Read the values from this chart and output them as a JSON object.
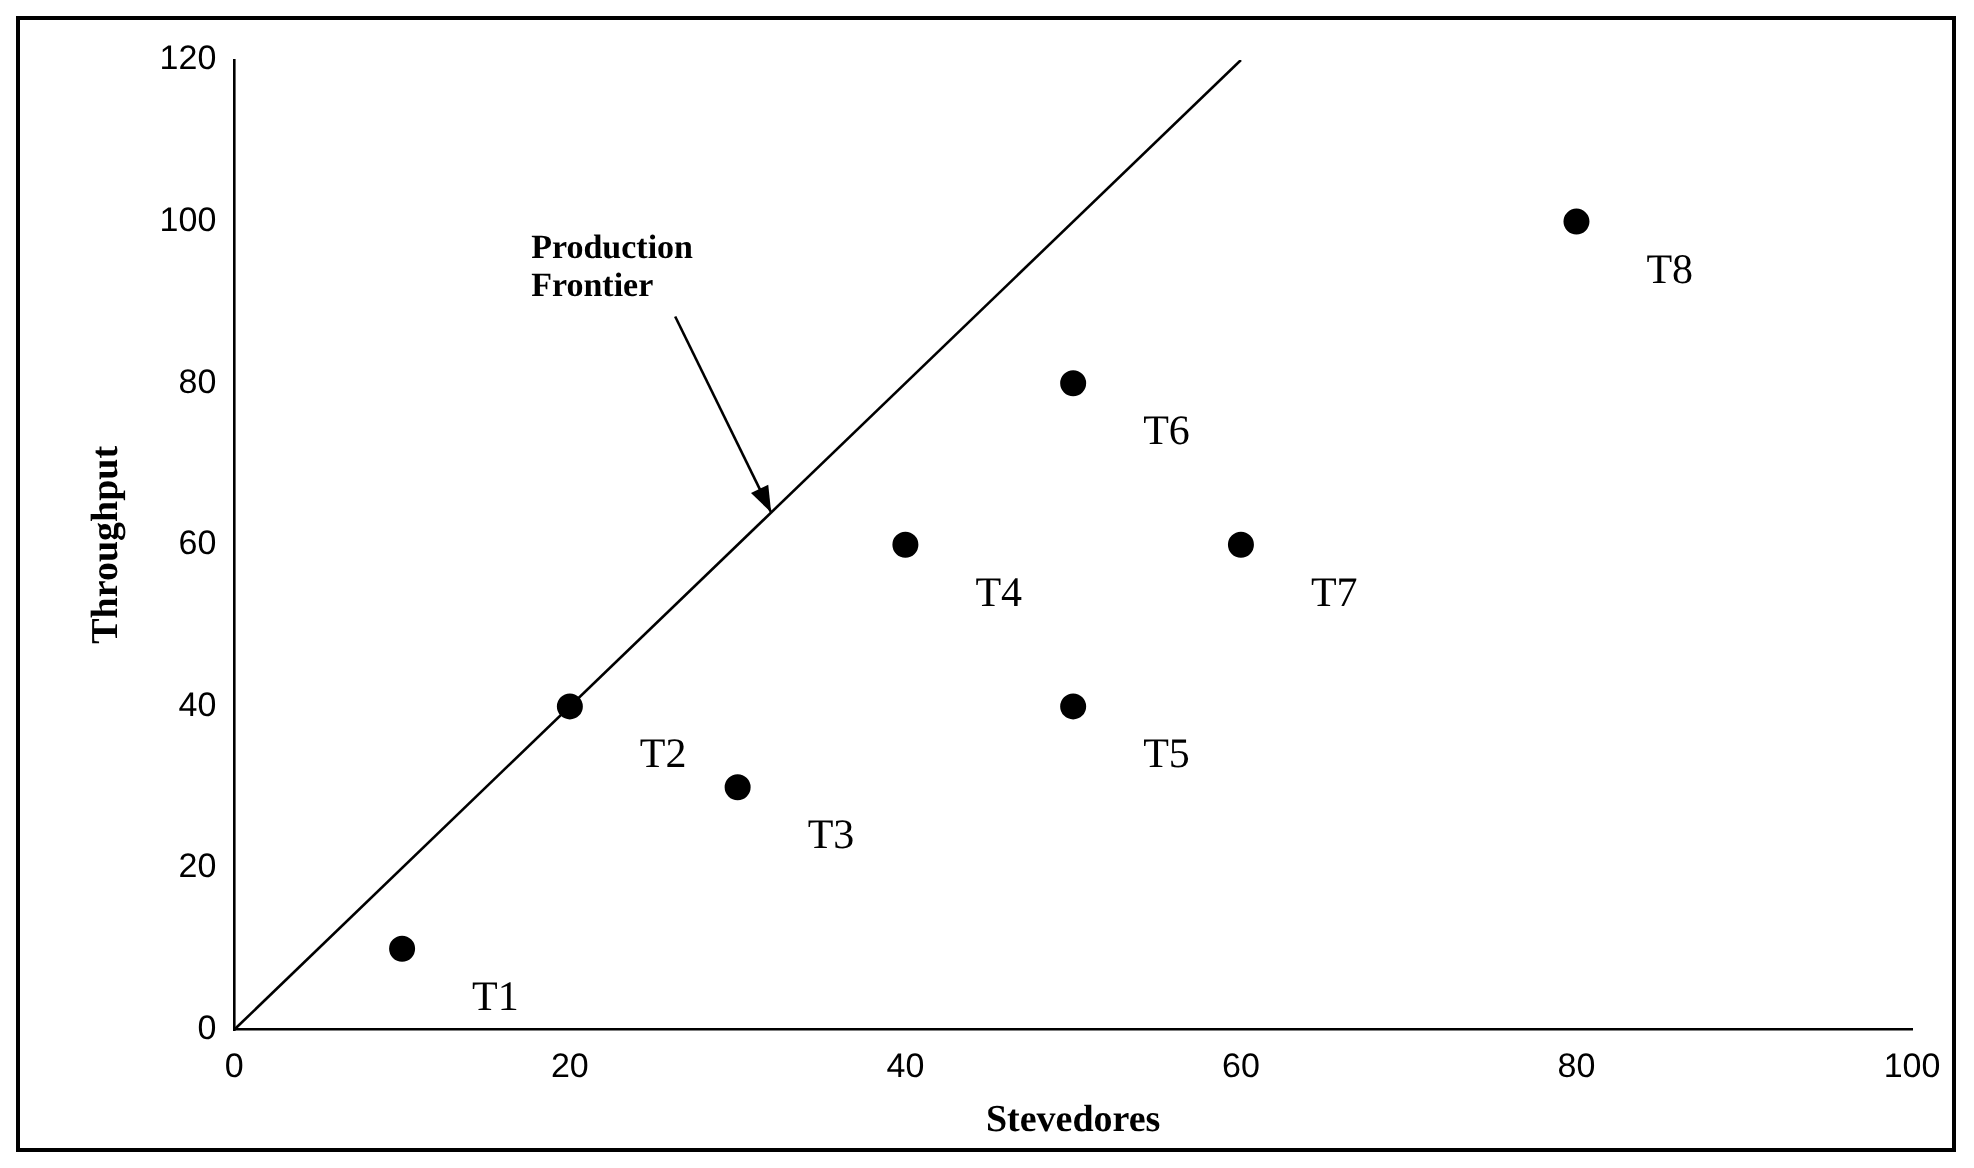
{
  "chart_data": {
    "type": "scatter",
    "xlabel": "Stevedores",
    "ylabel": "Throughput",
    "xlim": [
      0,
      100
    ],
    "xticks": [
      0,
      20,
      40,
      60,
      80,
      100
    ],
    "ylim": [
      0,
      120
    ],
    "yticks": [
      0,
      20,
      40,
      60,
      80,
      100,
      120
    ],
    "grid": false,
    "legend": false,
    "marker": "circle",
    "series": [
      {
        "type": "scatter",
        "color": "#000000",
        "x": [
          10,
          20,
          30,
          40,
          50,
          50,
          60,
          80
        ],
        "values": [
          10,
          40,
          30,
          60,
          40,
          80,
          60,
          100
        ]
      },
      {
        "type": "line",
        "color": "#000000",
        "marker": "none",
        "line_style": "solid",
        "x": [
          0,
          60
        ],
        "values": [
          0,
          120
        ]
      }
    ],
    "annotations": [
      {
        "text": "T1",
        "x": 10,
        "y": 10
      },
      {
        "text": "T2",
        "x": 20,
        "y": 40
      },
      {
        "text": "T3",
        "x": 30,
        "y": 30
      },
      {
        "text": "T4",
        "x": 40,
        "y": 60
      },
      {
        "text": "T5",
        "x": 50,
        "y": 40
      },
      {
        "text": "T6",
        "x": 50,
        "y": 80
      },
      {
        "text": "T7",
        "x": 60,
        "y": 60
      },
      {
        "text": "T8",
        "x": 80,
        "y": 100
      },
      {
        "text": "Production Frontier",
        "x": 32,
        "y": 64
      }
    ]
  }
}
